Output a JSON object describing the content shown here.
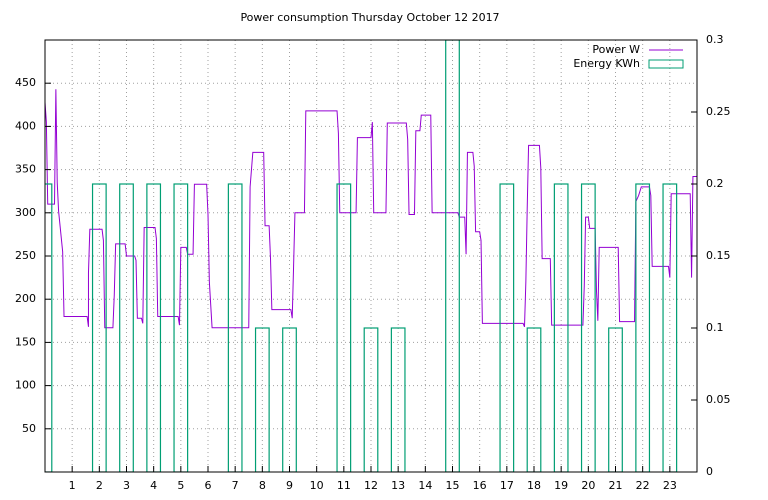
{
  "chart_data": {
    "type": "line",
    "title": "Power consumption Thursday October 12 2017",
    "xlim": [
      0,
      24
    ],
    "xticks": [
      1,
      2,
      3,
      4,
      5,
      6,
      7,
      8,
      9,
      10,
      11,
      12,
      13,
      14,
      15,
      16,
      17,
      18,
      19,
      20,
      21,
      22,
      23
    ],
    "ylim": [
      0,
      500
    ],
    "yticks": [
      50,
      100,
      150,
      200,
      250,
      300,
      350,
      400,
      450
    ],
    "y2lim": [
      0,
      0.3
    ],
    "y2ticks": [
      0,
      0.05,
      0.1,
      0.15,
      0.2,
      0.25,
      0.3
    ],
    "grid": true,
    "legend": "top-right",
    "series": [
      {
        "name": "Power W",
        "color": "#9400d3",
        "type": "line",
        "x": [
          0,
          0.05,
          0.1,
          0.35,
          0.4,
          0.45,
          0.5,
          0.65,
          0.7,
          1.55,
          1.6,
          1.6,
          1.65,
          2.1,
          2.15,
          2.2,
          2.5,
          2.55,
          2.6,
          2.95,
          3,
          3.3,
          3.35,
          3.4,
          3.55,
          3.6,
          3.65,
          4.05,
          4.1,
          4.15,
          4.9,
          4.95,
          5,
          5.2,
          5.25,
          5.45,
          5.5,
          5.95,
          6,
          6.05,
          6.15,
          7.5,
          7.55,
          7.65,
          8.05,
          8.1,
          8.25,
          8.3,
          8.35,
          9.05,
          9.1,
          9.15,
          9.2,
          9.55,
          9.6,
          10.75,
          10.8,
          10.85,
          11.45,
          11.5,
          12,
          12.05,
          12.1,
          12.55,
          12.6,
          13.3,
          13.35,
          13.4,
          13.6,
          13.65,
          13.8,
          13.85,
          14.2,
          14.25,
          15.2,
          15.25,
          15.45,
          15.5,
          15.55,
          15.75,
          15.8,
          15.85,
          16,
          16.05,
          16.1,
          17.6,
          17.65,
          17.7,
          17.75,
          17.8,
          18.2,
          18.25,
          18.3,
          18.6,
          18.65,
          19.8,
          19.85,
          19.9,
          20,
          20.05,
          20.25,
          20.3,
          20.35,
          20.4,
          21.1,
          21.15,
          21.7,
          21.75,
          21.85,
          21.95,
          22.25,
          22.3,
          22.35,
          22.95,
          23,
          23.05,
          23.75,
          23.8,
          23.85,
          24
        ],
        "values": [
          428,
          405,
          310,
          310,
          443,
          335,
          302,
          255,
          180,
          180,
          168,
          230,
          281,
          281,
          268,
          167,
          167,
          205,
          264,
          264,
          250,
          250,
          245,
          178,
          178,
          172,
          283,
          283,
          270,
          180,
          180,
          170,
          260,
          260,
          252,
          252,
          333,
          333,
          298,
          220,
          167,
          167,
          330,
          370,
          370,
          285,
          285,
          248,
          188,
          188,
          178,
          238,
          300,
          300,
          418,
          418,
          392,
          300,
          300,
          387,
          387,
          405,
          300,
          300,
          404,
          404,
          385,
          298,
          298,
          395,
          395,
          413,
          413,
          300,
          300,
          295,
          295,
          252,
          370,
          370,
          354,
          278,
          278,
          268,
          172,
          172,
          168,
          220,
          305,
          378,
          378,
          352,
          247,
          247,
          170,
          170,
          215,
          295,
          295,
          282,
          282,
          210,
          175,
          260,
          260,
          174,
          174,
          313,
          320,
          330,
          330,
          320,
          238,
          238,
          225,
          322,
          322,
          225,
          342,
          342
        ]
      },
      {
        "name": "Energy KWh",
        "color": "#009e73",
        "type": "boxes",
        "axis": "y2",
        "x": [
          0,
          1,
          2,
          3,
          4,
          5,
          6,
          7,
          8,
          9,
          10,
          11,
          12,
          13,
          14,
          15,
          16,
          17,
          18,
          19,
          20,
          21,
          22,
          23
        ],
        "values": [
          0.2,
          0,
          0.2,
          0.2,
          0.2,
          0.2,
          0,
          0.2,
          0.1,
          0.1,
          0,
          0.2,
          0.1,
          0.1,
          0,
          0.3,
          0,
          0.2,
          0.1,
          0.2,
          0.2,
          0.1,
          0.2,
          0.2
        ]
      }
    ]
  }
}
